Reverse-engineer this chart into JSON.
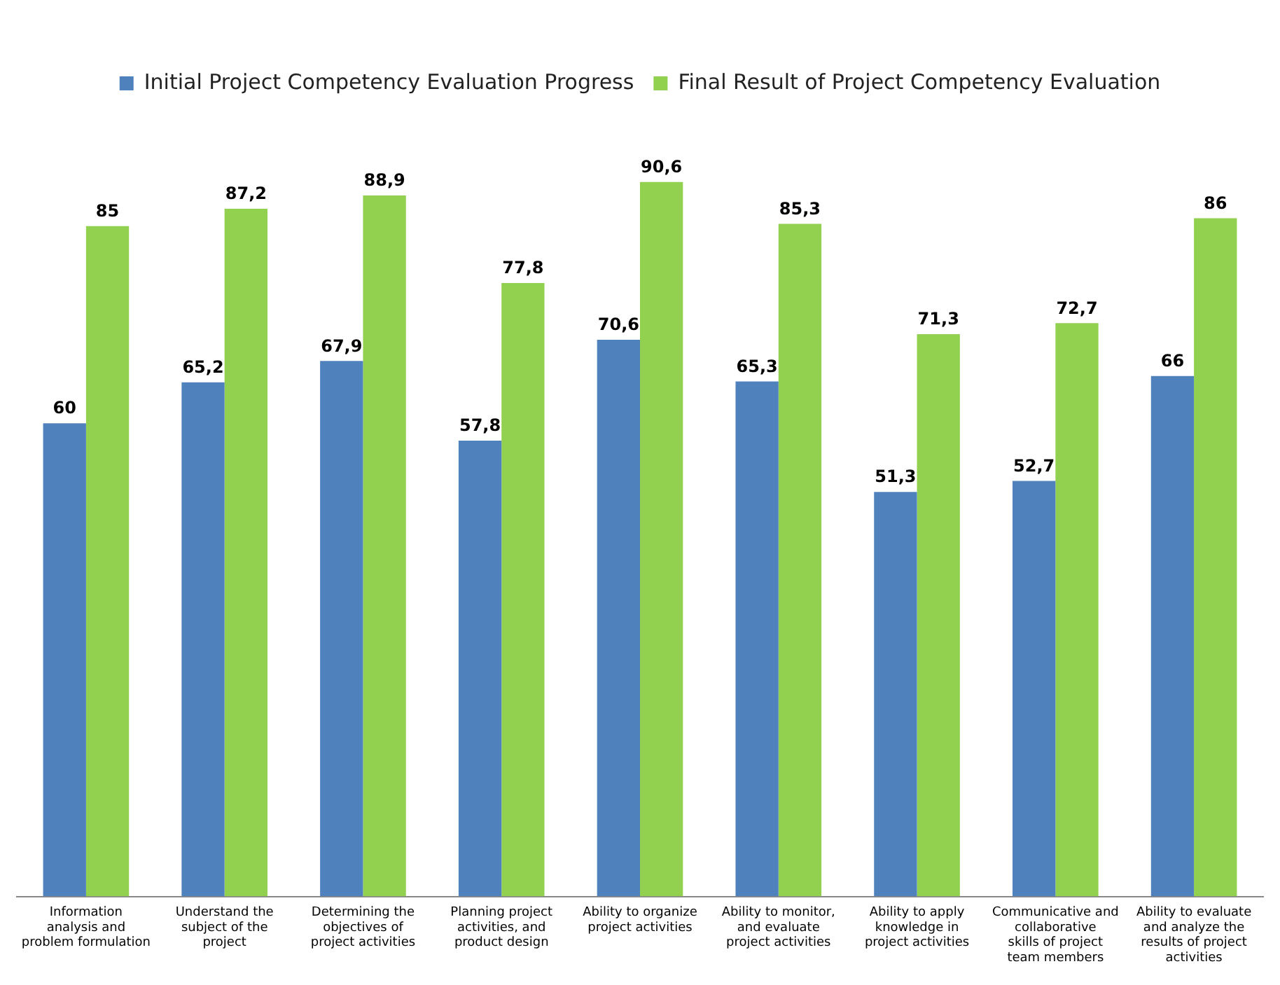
{
  "chart_data": {
    "type": "bar",
    "categories": [
      "Information analysis and problem formulation",
      "Understand the subject of the project",
      "Determining the objectives of project activities",
      "Planning project activities, and product design",
      "Ability to organize project activities",
      "Ability to monitor, and evaluate project activities",
      "Ability to apply knowledge in project activities",
      "Communicative and collaborative skills of project team members",
      "Ability to evaluate and analyze the results of project activities"
    ],
    "series": [
      {
        "name": "Initial Project Competency Evaluation Progress",
        "color": "#4f81bd",
        "values": [
          60,
          65.2,
          67.9,
          57.8,
          70.6,
          65.3,
          51.3,
          52.7,
          66
        ],
        "value_labels": [
          "60",
          "65,2",
          "67,9",
          "57,8",
          "70,6",
          "65,3",
          "51,3",
          "52,7",
          "66"
        ]
      },
      {
        "name": "Final Result of Project Competency Evaluation",
        "color": "#92d050",
        "values": [
          85,
          87.2,
          88.9,
          77.8,
          90.6,
          85.3,
          71.3,
          72.7,
          86
        ],
        "value_labels": [
          "85",
          "87,2",
          "88,9",
          "77,8",
          "90,6",
          "85,3",
          "71,3",
          "72,7",
          "86"
        ]
      }
    ],
    "tick_labels": "x",
    "legend": "top",
    "grid": false
  }
}
